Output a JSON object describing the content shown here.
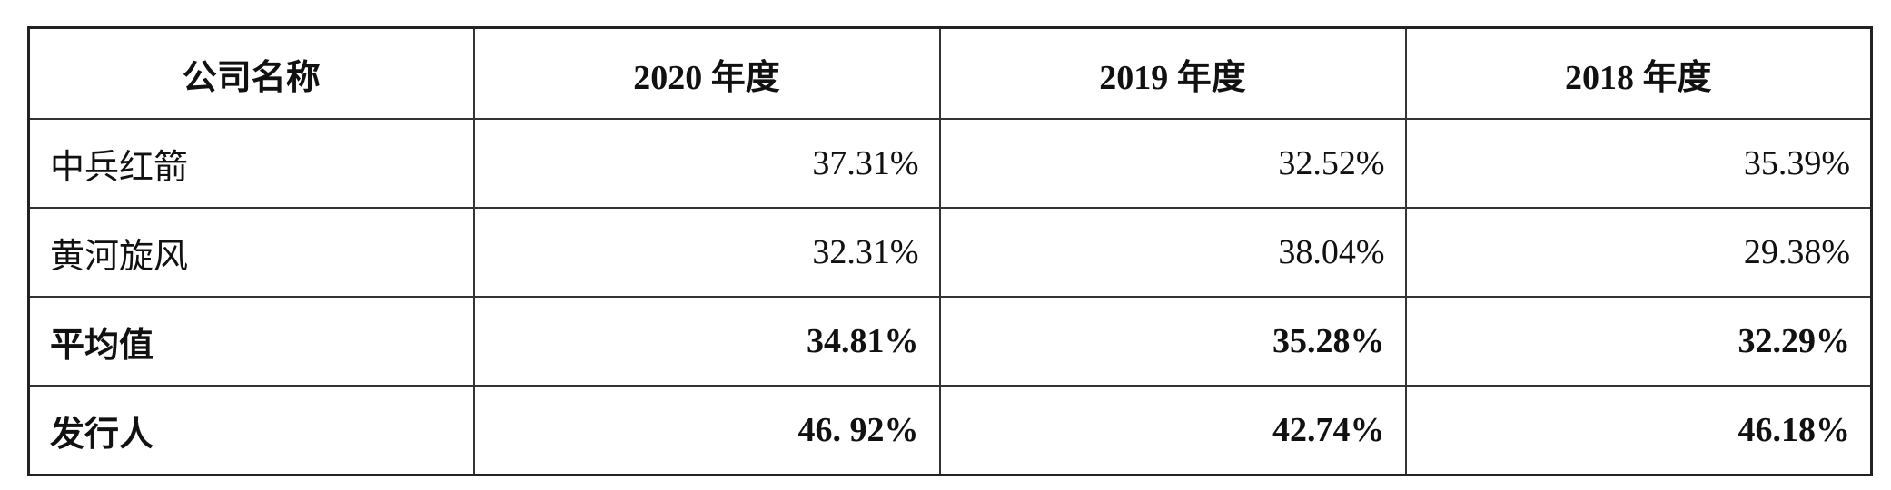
{
  "table": {
    "header": [
      "公司名称",
      "2020 年度",
      "2019 年度",
      "2018 年度"
    ],
    "rows": [
      [
        "中兵红箭",
        "37.31%",
        "32.52%",
        "35.39%"
      ],
      [
        "黄河旋风",
        "32.31%",
        "38.04%",
        "29.38%"
      ],
      [
        "平均值",
        "34.81%",
        "35.28%",
        "32.29%"
      ],
      [
        "发行人",
        "46. 92%",
        "42.74%",
        "46.18%"
      ]
    ]
  }
}
